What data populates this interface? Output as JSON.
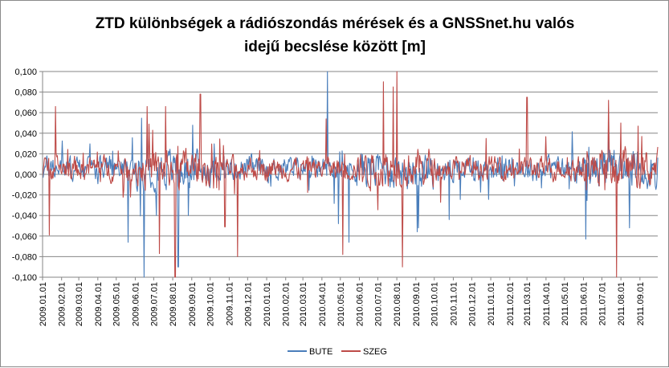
{
  "chart_data": {
    "type": "line",
    "title": "ZTD különbségek a rádiószondás mérések és a GNSSnet.hu valós idejű becslése között [m]",
    "title_lines": [
      "ZTD különbségek a rádiószondás mérések és a GNSSnet.hu  valós",
      "idejű becslése között [m]"
    ],
    "xlabel": "",
    "ylabel": "",
    "ylim": [
      -0.1,
      0.1
    ],
    "y_ticks": [
      "0,100",
      "0,080",
      "0,060",
      "0,040",
      "0,020",
      "0,000",
      "-0,020",
      "-0,040",
      "-0,060",
      "-0,080",
      "-0,100"
    ],
    "x_ticks": [
      "2009.01.01",
      "2009.02.01",
      "2009.03.01",
      "2009.04.01",
      "2009.05.01",
      "2009.06.01",
      "2009.07.01",
      "2009.08.01",
      "2009.09.01",
      "2009.10.01",
      "2009.11.01",
      "2009.12.01",
      "2010.01.01",
      "2010.02.01",
      "2010.03.01",
      "2010.04.01",
      "2010.05.01",
      "2010.06.01",
      "2010.07.01",
      "2010.08.01",
      "2010.09.01",
      "2010.10.01",
      "2010.11.01",
      "2010.12.01",
      "2011.01.01",
      "2011.02.01",
      "2011.03.01",
      "2011.04.01",
      "2011.05.01",
      "2011.06.01",
      "2011.07.01",
      "2011.08.01",
      "2011.09.01"
    ],
    "x_range": [
      "2009.01.01",
      "2011.09.30"
    ],
    "grid": "horizontal",
    "legend_position": "bottom",
    "series": [
      {
        "name": "BUTE",
        "color": "#4a7ebb",
        "spikes": [
          {
            "date": "2009.06.15",
            "value": -0.1
          },
          {
            "date": "2009.05.20",
            "value": -0.066
          },
          {
            "date": "2009.07.05",
            "value": -0.04
          },
          {
            "date": "2009.08.10",
            "value": -0.09
          },
          {
            "date": "2010.04.10",
            "value": 0.1
          },
          {
            "date": "2010.04.28",
            "value": -0.048
          },
          {
            "date": "2010.05.15",
            "value": -0.066
          },
          {
            "date": "2010.09.05",
            "value": -0.052
          },
          {
            "date": "2010.10.25",
            "value": -0.044
          },
          {
            "date": "2011.06.05",
            "value": -0.063
          },
          {
            "date": "2011.08.15",
            "value": -0.052
          }
        ]
      },
      {
        "name": "SZEG",
        "color": "#be4b48",
        "spikes": [
          {
            "date": "2009.01.12",
            "value": -0.059
          },
          {
            "date": "2009.01.22",
            "value": 0.066
          },
          {
            "date": "2009.06.20",
            "value": 0.066
          },
          {
            "date": "2009.07.10",
            "value": -0.077
          },
          {
            "date": "2009.07.20",
            "value": 0.066
          },
          {
            "date": "2009.08.05",
            "value": -0.1
          },
          {
            "date": "2009.09.15",
            "value": 0.078
          },
          {
            "date": "2009.10.25",
            "value": -0.051
          },
          {
            "date": "2009.11.15",
            "value": -0.08
          },
          {
            "date": "2010.04.08",
            "value": 0.054
          },
          {
            "date": "2010.05.05",
            "value": -0.078
          },
          {
            "date": "2010.07.10",
            "value": 0.09
          },
          {
            "date": "2010.07.26",
            "value": 0.085
          },
          {
            "date": "2010.08.01",
            "value": 0.1
          },
          {
            "date": "2010.08.10",
            "value": -0.09
          },
          {
            "date": "2011.03.01",
            "value": 0.075
          },
          {
            "date": "2011.07.12",
            "value": 0.072
          },
          {
            "date": "2011.07.25",
            "value": -0.1
          },
          {
            "date": "2011.08.01",
            "value": 0.05
          }
        ]
      }
    ]
  }
}
